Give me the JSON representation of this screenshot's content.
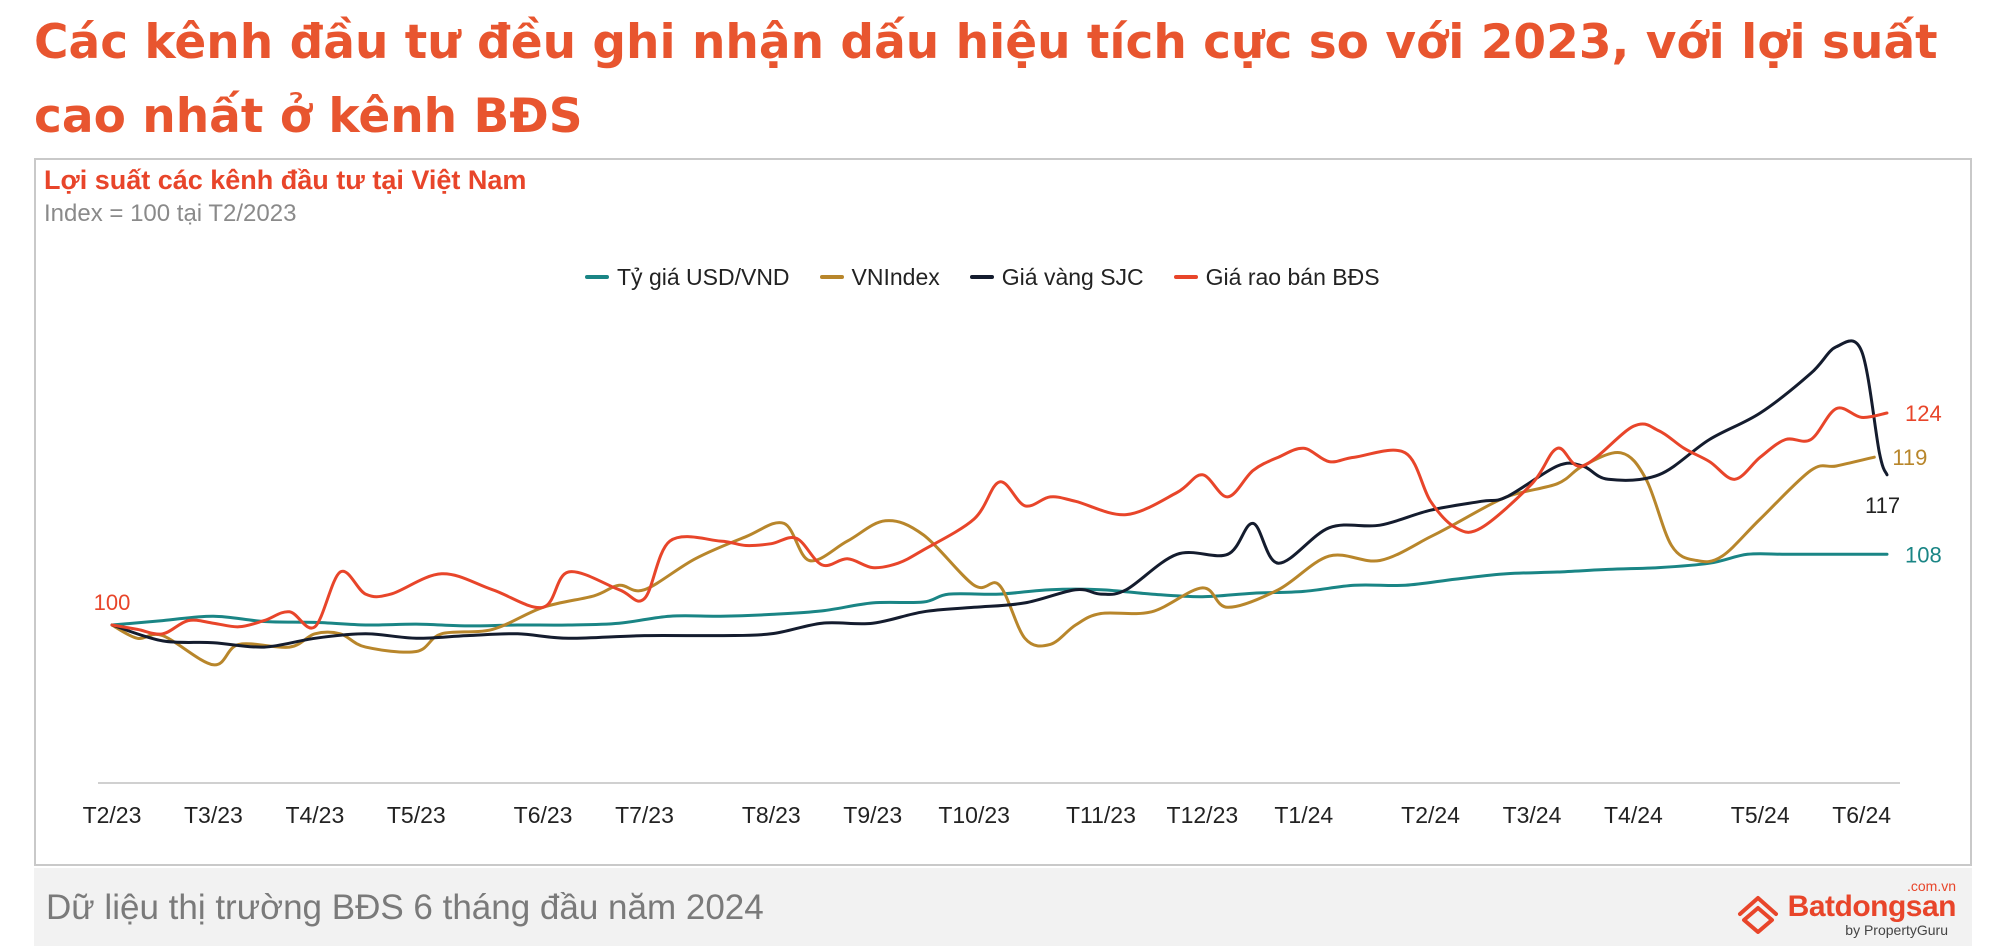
{
  "headline": "Các kênh đầu tư đều ghi nhận dấu hiệu tích cực so với 2023, với lợi suất cao nhất ở kênh BĐS",
  "footer": {
    "text": "Dữ liệu thị trường BĐS 6 tháng đầu năm 2024"
  },
  "logo": {
    "domain": ".com.vn",
    "name": "Batdongsan",
    "sub": "by PropertyGuru"
  },
  "chart_data": {
    "type": "line",
    "title": "Lợi suất các kênh đầu tư tại Việt Nam",
    "subtitle": "Index = 100 tại T2/2023",
    "xlabel": "",
    "ylabel": "",
    "ylim": [
      78,
      132
    ],
    "grid": false,
    "legend_position": "top-center",
    "categories": [
      "T2/23",
      "T3/23",
      "T4/23",
      "T5/23",
      "T6/23",
      "T7/23",
      "T8/23",
      "T9/23",
      "T10/23",
      "T11/23",
      "T12/23",
      "T1/24",
      "T2/24",
      "T3/24",
      "T4/24",
      "T5/24",
      "T6/24"
    ],
    "category_x": [
      0,
      4,
      8,
      12,
      17,
      21,
      26,
      30,
      34,
      39,
      43,
      47,
      52,
      56,
      60,
      65,
      69
    ],
    "x_max": 70,
    "series": [
      {
        "name": "Tỷ giá USD/VND",
        "color": "#1a8585",
        "end_label": "108",
        "points": [
          [
            0,
            100
          ],
          [
            2,
            100.5
          ],
          [
            4,
            101
          ],
          [
            6,
            100.4
          ],
          [
            8,
            100.3
          ],
          [
            10,
            100
          ],
          [
            12,
            100.1
          ],
          [
            14,
            99.9
          ],
          [
            16,
            100
          ],
          [
            18,
            100
          ],
          [
            20,
            100.2
          ],
          [
            22,
            101
          ],
          [
            24,
            101
          ],
          [
            26,
            101.2
          ],
          [
            28,
            101.6
          ],
          [
            30,
            102.5
          ],
          [
            32,
            102.6
          ],
          [
            33,
            103.5
          ],
          [
            35,
            103.5
          ],
          [
            37,
            104
          ],
          [
            39,
            104
          ],
          [
            41,
            103.5
          ],
          [
            43,
            103.2
          ],
          [
            45,
            103.6
          ],
          [
            47,
            103.8
          ],
          [
            49,
            104.5
          ],
          [
            51,
            104.5
          ],
          [
            53,
            105.2
          ],
          [
            55,
            105.8
          ],
          [
            57,
            106
          ],
          [
            59,
            106.3
          ],
          [
            61,
            106.5
          ],
          [
            63,
            107
          ],
          [
            64.5,
            108
          ],
          [
            66,
            108
          ],
          [
            68,
            108
          ],
          [
            70,
            108
          ]
        ]
      },
      {
        "name": "VNIndex",
        "color": "#b8862b",
        "end_label": "119",
        "points": [
          [
            0,
            100
          ],
          [
            1,
            98.5
          ],
          [
            2,
            98.8
          ],
          [
            4,
            95.5
          ],
          [
            5,
            97.8
          ],
          [
            7,
            97.5
          ],
          [
            8,
            99
          ],
          [
            9,
            99
          ],
          [
            10,
            97.5
          ],
          [
            12,
            97
          ],
          [
            13,
            99
          ],
          [
            15,
            99.5
          ],
          [
            17,
            102
          ],
          [
            19,
            103.3
          ],
          [
            20,
            104.5
          ],
          [
            21,
            104
          ],
          [
            23,
            107.5
          ],
          [
            25,
            110
          ],
          [
            26.5,
            111.5
          ],
          [
            27.5,
            107.3
          ],
          [
            29,
            109.5
          ],
          [
            30.5,
            111.8
          ],
          [
            32,
            110.2
          ],
          [
            34,
            104.5
          ],
          [
            35,
            104.5
          ],
          [
            36,
            98.5
          ],
          [
            37,
            97.8
          ],
          [
            38,
            100
          ],
          [
            39,
            101.3
          ],
          [
            41,
            101.5
          ],
          [
            43,
            104.2
          ],
          [
            44,
            102
          ],
          [
            46,
            104
          ],
          [
            48,
            107.8
          ],
          [
            50,
            107.3
          ],
          [
            52,
            110
          ],
          [
            53,
            111.5
          ],
          [
            55,
            114.5
          ],
          [
            57,
            116
          ],
          [
            58,
            118
          ],
          [
            59.5,
            119.5
          ],
          [
            60.5,
            116.5
          ],
          [
            61.5,
            109
          ],
          [
            62.5,
            107.3
          ],
          [
            63.5,
            107.8
          ],
          [
            65,
            112
          ],
          [
            67,
            117.5
          ],
          [
            68,
            118
          ],
          [
            69.5,
            119
          ]
        ]
      },
      {
        "name": "Giá vàng SJC",
        "color": "#141c2e",
        "end_label": "117",
        "points": [
          [
            0,
            100
          ],
          [
            2,
            98.2
          ],
          [
            4,
            98
          ],
          [
            6,
            97.5
          ],
          [
            8,
            98.5
          ],
          [
            10,
            99
          ],
          [
            12,
            98.5
          ],
          [
            14,
            98.8
          ],
          [
            16,
            99
          ],
          [
            18,
            98.5
          ],
          [
            21,
            98.8
          ],
          [
            24,
            98.8
          ],
          [
            26,
            99
          ],
          [
            28,
            100.2
          ],
          [
            30,
            100.2
          ],
          [
            32,
            101.5
          ],
          [
            34,
            102
          ],
          [
            36,
            102.5
          ],
          [
            38,
            104
          ],
          [
            39,
            103.5
          ],
          [
            40,
            104
          ],
          [
            42,
            108
          ],
          [
            44,
            108
          ],
          [
            45,
            111.5
          ],
          [
            46,
            107
          ],
          [
            48,
            111
          ],
          [
            50,
            111.3
          ],
          [
            52,
            113
          ],
          [
            54,
            114
          ],
          [
            55,
            114.5
          ],
          [
            57,
            118
          ],
          [
            58,
            118
          ],
          [
            59,
            116.5
          ],
          [
            61,
            117
          ],
          [
            63,
            121
          ],
          [
            65,
            124
          ],
          [
            67,
            128.5
          ],
          [
            68,
            131.5
          ],
          [
            69,
            131
          ],
          [
            69.7,
            119.5
          ],
          [
            70,
            117
          ]
        ]
      },
      {
        "name": "Giá rao bán BĐS",
        "color": "#e8452a",
        "end_label": "124",
        "points": [
          [
            0,
            100
          ],
          [
            1,
            99.5
          ],
          [
            2,
            99
          ],
          [
            3,
            100.5
          ],
          [
            4,
            100.2
          ],
          [
            5,
            99.8
          ],
          [
            6,
            100.5
          ],
          [
            7,
            101.5
          ],
          [
            8,
            99.8
          ],
          [
            9,
            106
          ],
          [
            10,
            103.5
          ],
          [
            11,
            103.5
          ],
          [
            13,
            105.8
          ],
          [
            15,
            104
          ],
          [
            17,
            102
          ],
          [
            18,
            106
          ],
          [
            20,
            104
          ],
          [
            21,
            103
          ],
          [
            22,
            109.5
          ],
          [
            24,
            109.5
          ],
          [
            25,
            109
          ],
          [
            26,
            109.2
          ],
          [
            27,
            109.8
          ],
          [
            28,
            106.8
          ],
          [
            29,
            107.5
          ],
          [
            30,
            106.5
          ],
          [
            31,
            107
          ],
          [
            32,
            108.5
          ],
          [
            34,
            112
          ],
          [
            35,
            116.2
          ],
          [
            36,
            113.5
          ],
          [
            37,
            114.5
          ],
          [
            38,
            114
          ],
          [
            40,
            112.5
          ],
          [
            42,
            115
          ],
          [
            43,
            117
          ],
          [
            44,
            114.5
          ],
          [
            45,
            117.5
          ],
          [
            46,
            119
          ],
          [
            47,
            120
          ],
          [
            48,
            118.5
          ],
          [
            49,
            119
          ],
          [
            51,
            119.5
          ],
          [
            52,
            114
          ],
          [
            53,
            111
          ],
          [
            54,
            111
          ],
          [
            56,
            116
          ],
          [
            57,
            120
          ],
          [
            58,
            118
          ],
          [
            60,
            122.5
          ],
          [
            61,
            122
          ],
          [
            62,
            120
          ],
          [
            63,
            118.5
          ],
          [
            64,
            116.5
          ],
          [
            65,
            119
          ],
          [
            66,
            121
          ],
          [
            67,
            121
          ],
          [
            68,
            124.5
          ],
          [
            69,
            123.5
          ],
          [
            70,
            124
          ]
        ]
      }
    ],
    "start_label": "100"
  }
}
